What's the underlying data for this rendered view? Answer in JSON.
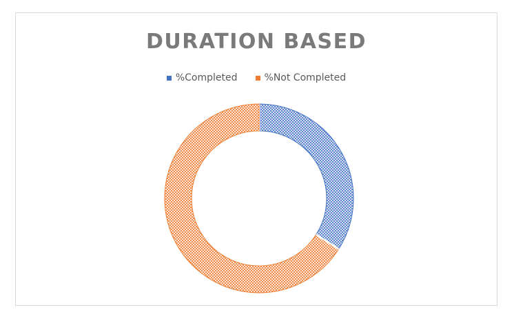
{
  "chart_data": {
    "type": "pie",
    "variant": "doughnut",
    "title": "DURATION BASED",
    "legend_position": "top",
    "categories": [
      "%Completed",
      "%Not Completed"
    ],
    "values": [
      34,
      66
    ],
    "colors": [
      "#4472c4",
      "#ed7d31"
    ],
    "fill_pattern": "crosshatch"
  }
}
